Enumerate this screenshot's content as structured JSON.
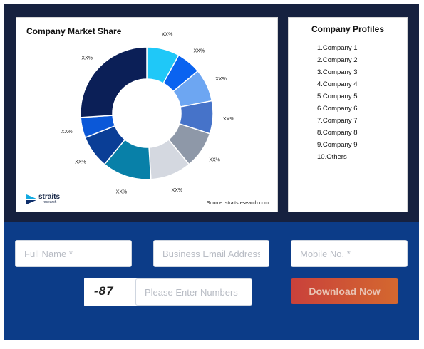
{
  "chart_card": {
    "title": "Company Market Share",
    "source": "Source: straitsresearch.com",
    "logo": {
      "name": "straits",
      "sub": "research"
    }
  },
  "chart_data": {
    "type": "pie",
    "title": "Company Market Share",
    "donut": true,
    "slices": [
      {
        "label": "XX%",
        "value": 8,
        "color": "#1fc8f8"
      },
      {
        "label": "XX%",
        "value": 6,
        "color": "#0a63f0"
      },
      {
        "label": "XX%",
        "value": 8,
        "color": "#6da6f2"
      },
      {
        "label": "XX%",
        "value": 8,
        "color": "#4673c9"
      },
      {
        "label": "XX%",
        "value": 9,
        "color": "#8e98a8"
      },
      {
        "label": "XX%",
        "value": 10,
        "color": "#d4d8e0"
      },
      {
        "label": "XX%",
        "value": 12,
        "color": "#0880a8"
      },
      {
        "label": "XX%",
        "value": 8,
        "color": "#0a3e96"
      },
      {
        "label": "XX%",
        "value": 5,
        "color": "#0b58d8"
      },
      {
        "label": "XX%",
        "value": 26,
        "color": "#0b1f57"
      }
    ]
  },
  "profiles": {
    "title": "Company Profiles",
    "items": [
      "1.Company 1",
      "2.Company 2",
      "3.Company 3",
      "4.Company 4",
      "5.Company 5",
      "6.Company 6",
      "7.Company 7",
      "8.Company 8",
      "9.Company 9",
      "10.Others"
    ]
  },
  "form": {
    "full_name_placeholder": "Full Name *",
    "email_placeholder": "Business Email Address *",
    "mobile_placeholder": "Mobile No. *",
    "captcha_text": "-87",
    "captcha_placeholder": "Please Enter Numbers",
    "download_label": "Download Now"
  },
  "colors": {
    "top_background": "#16213f",
    "bottom_background": "#0c3c88",
    "button_gradient_start": "#c9413b",
    "button_gradient_end": "#d4682f"
  }
}
